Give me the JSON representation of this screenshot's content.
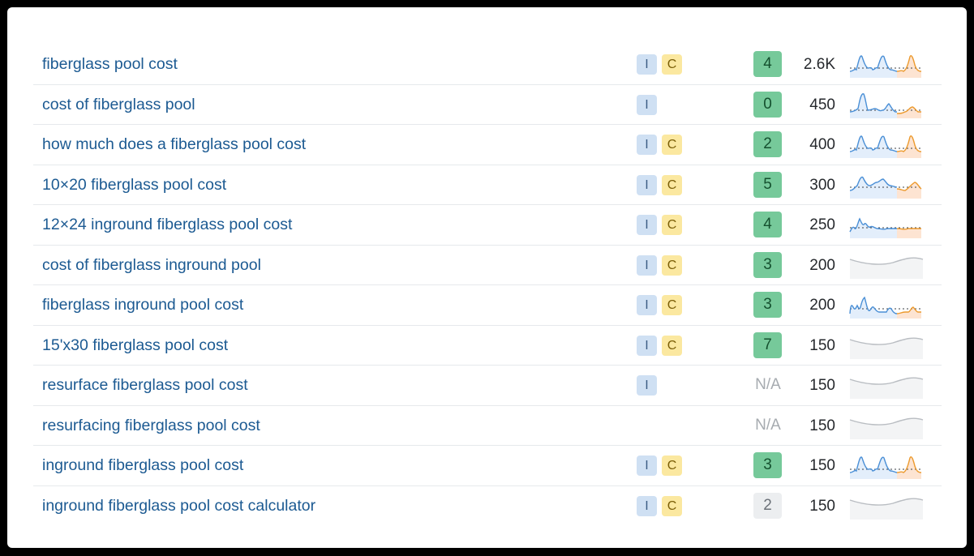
{
  "rows": [
    {
      "keyword": "fiberglass pool cost",
      "intents": [
        "I",
        "C"
      ],
      "kd": "4",
      "kd_style": "green",
      "volume": "2.6K",
      "trend": "active-high"
    },
    {
      "keyword": "cost of fiberglass pool",
      "intents": [
        "I"
      ],
      "kd": "0",
      "kd_style": "green",
      "volume": "450",
      "trend": "active-peak"
    },
    {
      "keyword": "how much does a fiberglass pool cost",
      "intents": [
        "I",
        "C"
      ],
      "kd": "2",
      "kd_style": "green",
      "volume": "400",
      "trend": "active-high"
    },
    {
      "keyword": "10×20 fiberglass pool cost",
      "intents": [
        "I",
        "C"
      ],
      "kd": "5",
      "kd_style": "green",
      "volume": "300",
      "trend": "active-mid"
    },
    {
      "keyword": "12×24 inground fiberglass pool cost",
      "intents": [
        "I",
        "C"
      ],
      "kd": "4",
      "kd_style": "green",
      "volume": "250",
      "trend": "active-flat"
    },
    {
      "keyword": "cost of fiberglass inground pool",
      "intents": [
        "I",
        "C"
      ],
      "kd": "3",
      "kd_style": "green",
      "volume": "200",
      "trend": "gray"
    },
    {
      "keyword": "fiberglass inground pool cost",
      "intents": [
        "I",
        "C"
      ],
      "kd": "3",
      "kd_style": "green",
      "volume": "200",
      "trend": "active-jagged"
    },
    {
      "keyword": "15'x30 fiberglass pool cost",
      "intents": [
        "I",
        "C"
      ],
      "kd": "7",
      "kd_style": "green",
      "volume": "150",
      "trend": "gray"
    },
    {
      "keyword": "resurface fiberglass pool cost",
      "intents": [
        "I"
      ],
      "kd": "N/A",
      "kd_style": "na",
      "volume": "150",
      "trend": "gray"
    },
    {
      "keyword": "resurfacing fiberglass pool cost",
      "intents": [],
      "kd": "N/A",
      "kd_style": "na",
      "volume": "150",
      "trend": "gray"
    },
    {
      "keyword": "inground fiberglass pool cost",
      "intents": [
        "I",
        "C"
      ],
      "kd": "3",
      "kd_style": "green",
      "volume": "150",
      "trend": "active-high"
    },
    {
      "keyword": "inground fiberglass pool cost calculator",
      "intents": [
        "I",
        "C"
      ],
      "kd": "2",
      "kd_style": "gray",
      "volume": "150",
      "trend": "gray"
    }
  ],
  "colors": {
    "link": "#1c5a92",
    "kd_green": "#76c99a",
    "intent_informational": "#cfe0f3",
    "intent_commercial": "#fbe8a0",
    "trend_blue": "#4a8fd6",
    "trend_orange": "#ec9a2e"
  }
}
